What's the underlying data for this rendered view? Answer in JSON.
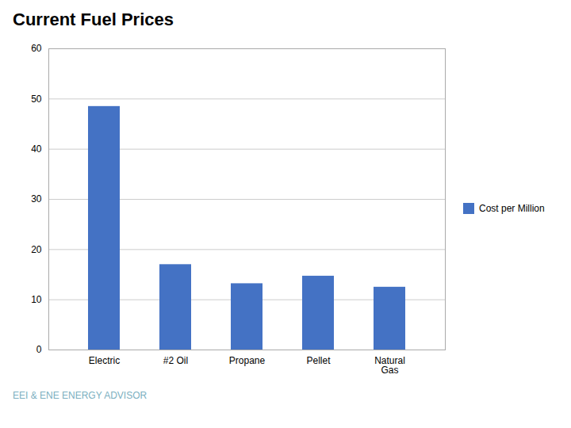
{
  "chart_data": {
    "type": "bar",
    "title": "Current Fuel Prices",
    "categories": [
      "Electric",
      "#2 Oil",
      "Propane",
      "Pellet",
      "Natural\nGas"
    ],
    "series": [
      {
        "name": "Cost per Million",
        "color": "#4472C4",
        "values": [
          48.5,
          17.0,
          13.2,
          14.7,
          12.5
        ]
      }
    ],
    "ylim": [
      0,
      60
    ],
    "yticks": [
      0,
      10,
      20,
      30,
      40,
      50,
      60
    ],
    "grid": true,
    "legend": "right",
    "caption": "EEI & ENE ENERGY ADVISOR"
  }
}
